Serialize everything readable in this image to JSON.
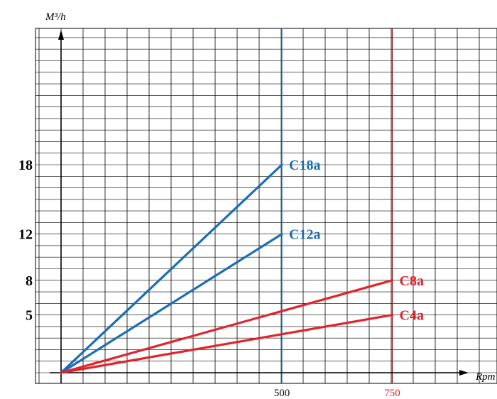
{
  "chart_data": {
    "type": "line",
    "title": "",
    "xlabel": "Rpm",
    "ylabel": "M³/h",
    "xlim": [
      0,
      940
    ],
    "ylim": [
      0,
      40
    ],
    "grid": true,
    "x_ticks": [
      {
        "value": 500,
        "label": "500",
        "color": "#000000"
      },
      {
        "value": 750,
        "label": "750",
        "color": "#e3232c"
      }
    ],
    "y_ticks": [
      {
        "value": 5,
        "label": "5"
      },
      {
        "value": 8,
        "label": "8"
      },
      {
        "value": 12,
        "label": "12"
      },
      {
        "value": 18,
        "label": "18"
      }
    ],
    "reference_lines": [
      {
        "x": 500,
        "color": "#1f77c8"
      },
      {
        "x": 750,
        "color": "#8b1a1a"
      }
    ],
    "series": [
      {
        "name": "C18a",
        "color": "#1c6db5",
        "points": [
          [
            0,
            0
          ],
          [
            500,
            18
          ]
        ]
      },
      {
        "name": "C12a",
        "color": "#1c6db5",
        "points": [
          [
            0,
            0
          ],
          [
            500,
            12
          ]
        ]
      },
      {
        "name": "C8a",
        "color": "#e3232c",
        "points": [
          [
            0,
            0
          ],
          [
            750,
            8
          ]
        ]
      },
      {
        "name": "C4a",
        "color": "#e3232c",
        "points": [
          [
            0,
            0
          ],
          [
            750,
            5
          ]
        ]
      }
    ]
  }
}
